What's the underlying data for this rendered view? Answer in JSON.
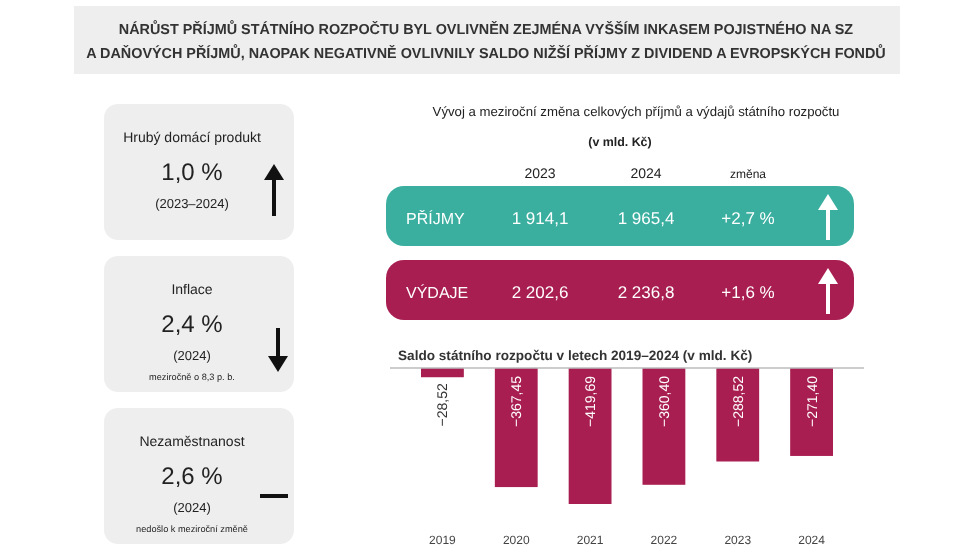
{
  "chart_data": [
    {
      "type": "other",
      "title": "NÁRŮST PŘÍJMŮ STÁTNÍHO ROZPOČTU BYL OVLIVNĚN ZEJMÉNA VYŠŠÍM INKASEM POJISTNÉHO NA SZ",
      "subtitle": "A DAŇOVÝCH PŘÍJMŮ, NAOPAK NEGATIVNĚ OVLIVNILY SALDO NIŽŠÍ PŘÍJMY Z DIVIDEND A EVROPSKÝCH FONDŮ"
    },
    {
      "type": "other",
      "title": "Hrubý domácí produkt",
      "annotations": [
        "1,0 %",
        "(2023–2024)"
      ]
    },
    {
      "type": "other",
      "title": "Inflace",
      "annotations": [
        "2,4 %",
        "(2024)",
        "meziročně o 8,3 p. b."
      ]
    },
    {
      "type": "other",
      "title": "Nezaměstnanost",
      "annotations": [
        "2,6 %",
        "(2024)",
        "nedošlo k meziroční změně"
      ]
    },
    {
      "type": "other",
      "title": "Vývoj a meziroční změna celkových příjmů a výdajů státního rozpočtu",
      "subtitle": "(v mld. Kč)",
      "categories": [
        "2023",
        "2024",
        "změna"
      ],
      "colors": [
        "#3aafa0",
        "#a81e50"
      ],
      "annotations": [
        "PŘÍJMY",
        "1 914,1",
        "1 965,4",
        "+2,7 %",
        "VÝDAJE",
        "2 202,6",
        "2 236,8",
        "+1,6 %"
      ]
    },
    {
      "type": "bar",
      "title": "Saldo státního rozpočtu v letech 2019–2024 (v mld. Kč)",
      "categories": [
        "2019",
        "2020",
        "2021",
        "2022",
        "2023",
        "2024"
      ],
      "values": [
        -28.52,
        -367.45,
        -419.69,
        -360.4,
        -288.52,
        -271.4
      ],
      "color": "#a81e50",
      "value_labels": [
        "−28,52",
        "−367,45",
        "−419,69",
        "−360,40",
        "−288,52",
        "−271,40"
      ],
      "tick_labels": "x"
    }
  ]
}
